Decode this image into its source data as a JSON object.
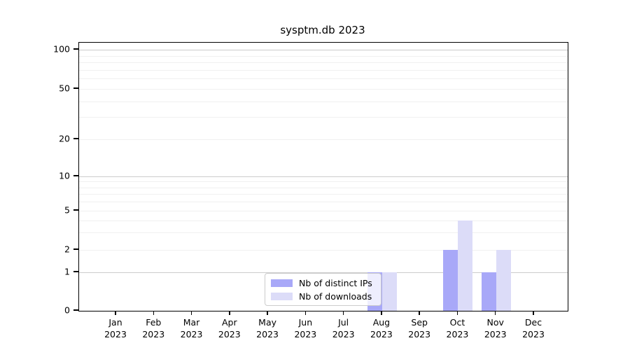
{
  "chart_data": {
    "type": "bar",
    "title": "sysptm.db 2023",
    "xlabel": "",
    "ylabel": "",
    "yscale": "symlog",
    "ylim": [
      0,
      110
    ],
    "grid": "horizontal, major darker than minor",
    "legend_position": "bottom-center inside plot",
    "yticks": [
      0,
      1,
      2,
      5,
      10,
      20,
      50,
      100
    ],
    "categories": [
      "Jan 2023",
      "Feb 2023",
      "Mar 2023",
      "Apr 2023",
      "May 2023",
      "Jun 2023",
      "Jul 2023",
      "Aug 2023",
      "Sep 2023",
      "Oct 2023",
      "Nov 2023",
      "Dec 2023"
    ],
    "series": [
      {
        "name": "Nb of distinct IPs",
        "color": "#a8a8f8",
        "values": [
          0,
          0,
          0,
          0,
          0,
          0,
          0,
          1,
          0,
          2,
          1,
          0
        ]
      },
      {
        "name": "Nb of downloads",
        "color": "#dcdcf8",
        "values": [
          0,
          0,
          0,
          0,
          0,
          0,
          0,
          1,
          0,
          4,
          2,
          0
        ]
      }
    ]
  }
}
